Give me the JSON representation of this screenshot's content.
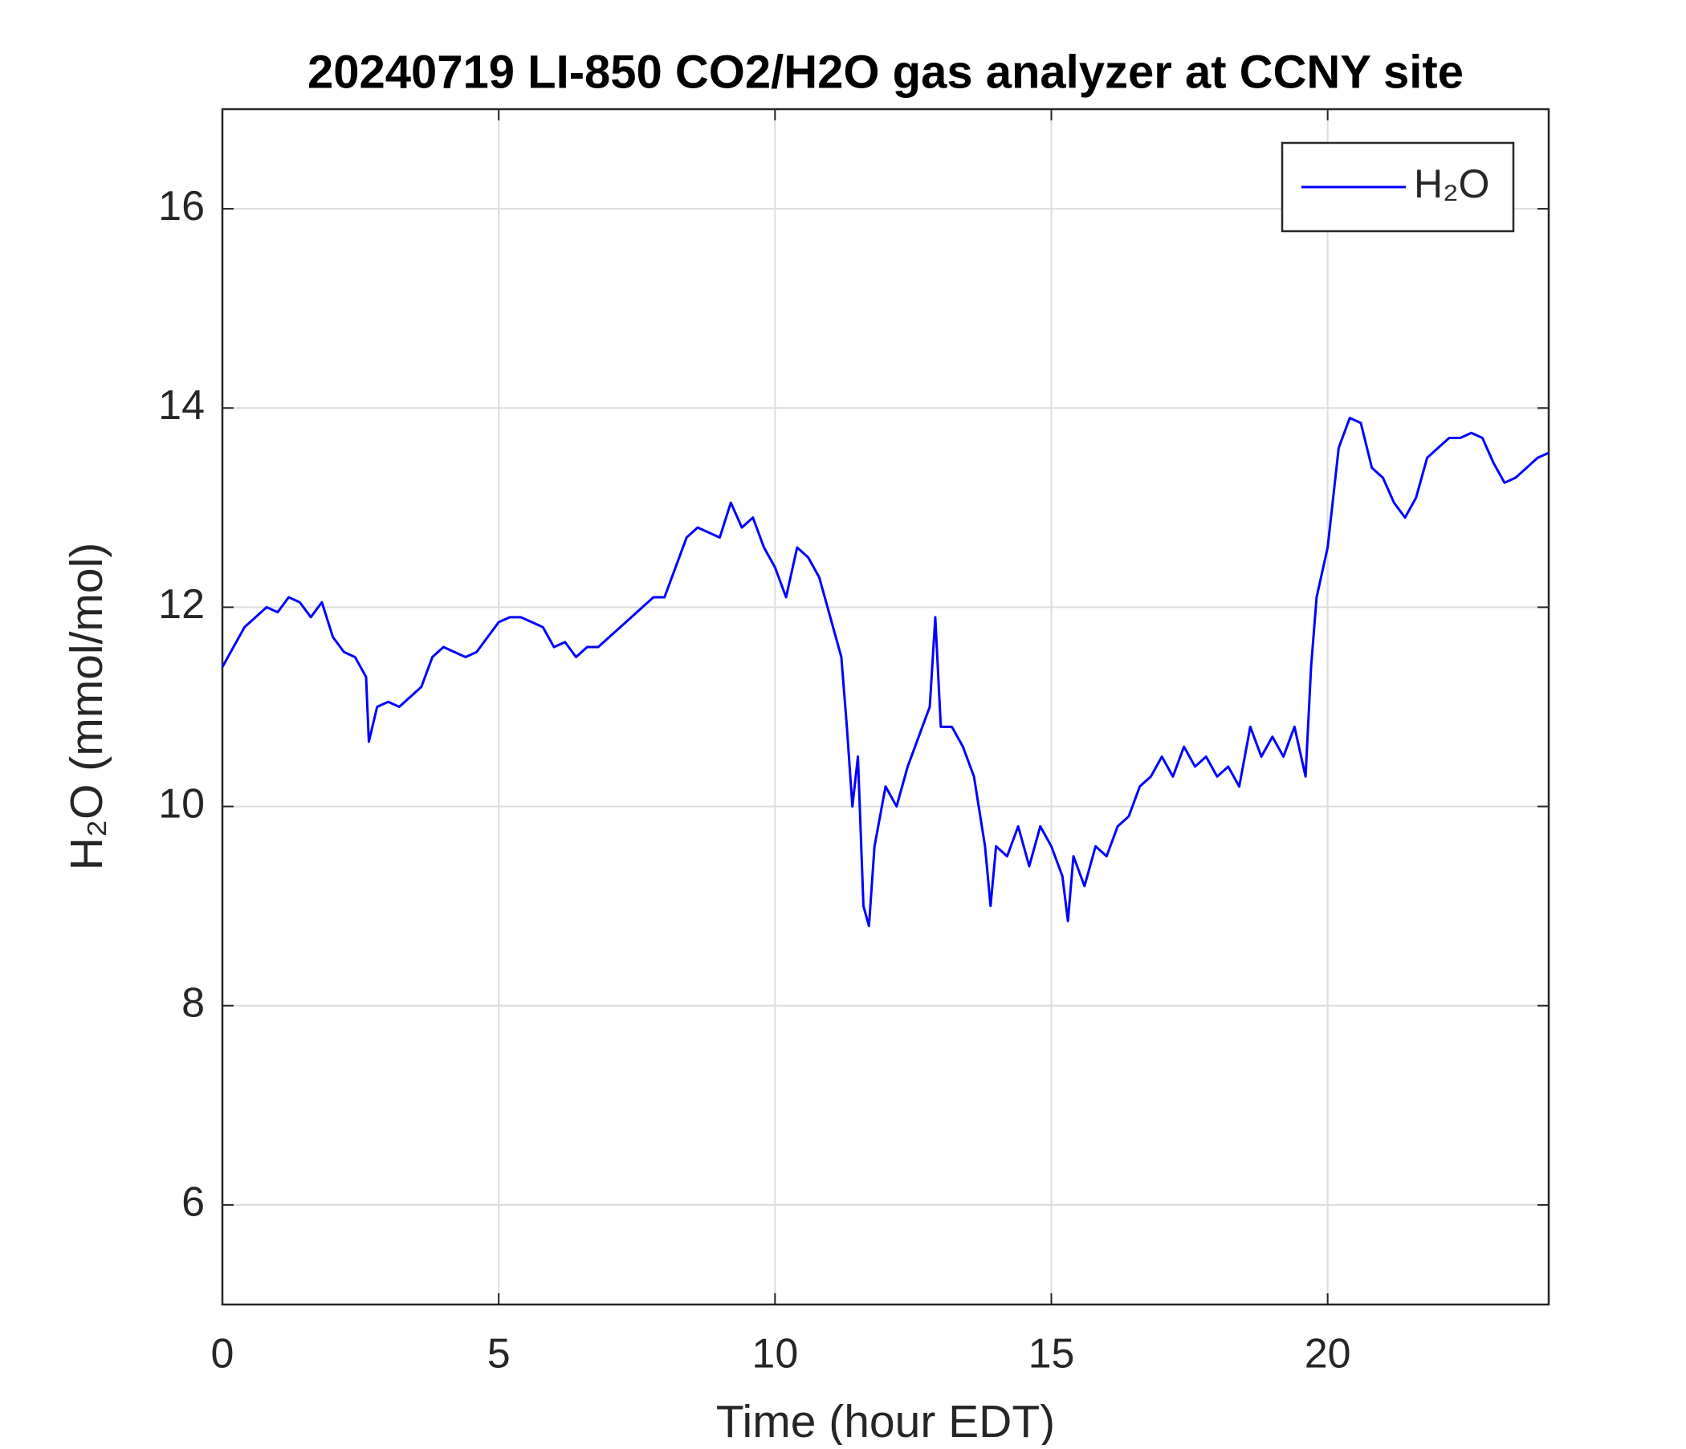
{
  "chart_data": {
    "type": "line",
    "title": "20240719 LI-850 CO2/H2O gas analyzer at CCNY site",
    "x_label": "Time (hour EDT)",
    "y_label": "H₂O (mmol/mol)",
    "xlim": [
      0,
      24
    ],
    "xticks": [
      0,
      5,
      10,
      15,
      20
    ],
    "ylim": [
      5,
      17
    ],
    "yticks": [
      6,
      8,
      10,
      12,
      14,
      16
    ],
    "grid": true,
    "legend": "upper right",
    "x": [
      0,
      0.2,
      0.4,
      0.6,
      0.8,
      1.0,
      1.2,
      1.4,
      1.6,
      1.8,
      2.0,
      2.2,
      2.4,
      2.6,
      2.65,
      2.8,
      3.0,
      3.2,
      3.4,
      3.6,
      3.8,
      4.0,
      4.2,
      4.4,
      4.6,
      4.8,
      5.0,
      5.2,
      5.4,
      5.6,
      5.8,
      6.0,
      6.2,
      6.4,
      6.6,
      6.8,
      7.0,
      7.2,
      7.4,
      7.6,
      7.8,
      8.0,
      8.2,
      8.4,
      8.6,
      8.8,
      9.0,
      9.2,
      9.4,
      9.6,
      9.8,
      10.0,
      10.2,
      10.4,
      10.6,
      10.8,
      11.0,
      11.2,
      11.3,
      11.4,
      11.5,
      11.6,
      11.7,
      11.8,
      12.0,
      12.2,
      12.4,
      12.6,
      12.8,
      12.9,
      13.0,
      13.2,
      13.4,
      13.6,
      13.8,
      13.9,
      14.0,
      14.2,
      14.4,
      14.6,
      14.8,
      15.0,
      15.2,
      15.3,
      15.4,
      15.6,
      15.8,
      16.0,
      16.2,
      16.4,
      16.6,
      16.8,
      17.0,
      17.2,
      17.4,
      17.6,
      17.8,
      18.0,
      18.2,
      18.4,
      18.6,
      18.8,
      19.0,
      19.2,
      19.4,
      19.6,
      19.7,
      19.8,
      20.0,
      20.2,
      20.4,
      20.6,
      20.8,
      21.0,
      21.2,
      21.4,
      21.6,
      21.8,
      22.0,
      22.2,
      22.4,
      22.6,
      22.8,
      23.0,
      23.2,
      23.4,
      23.6,
      23.8,
      24.0
    ],
    "series": [
      {
        "name": "H₂O",
        "color": "#0000ff",
        "values": [
          11.4,
          11.6,
          11.8,
          11.9,
          12.0,
          11.95,
          12.1,
          12.05,
          11.9,
          12.05,
          11.7,
          11.55,
          11.5,
          11.3,
          10.65,
          11.0,
          11.05,
          11.0,
          11.1,
          11.2,
          11.5,
          11.6,
          11.55,
          11.5,
          11.55,
          11.7,
          11.85,
          11.9,
          11.9,
          11.85,
          11.8,
          11.6,
          11.65,
          11.5,
          11.6,
          11.6,
          11.7,
          11.8,
          11.9,
          12.0,
          12.1,
          12.1,
          12.4,
          12.7,
          12.8,
          12.75,
          12.7,
          13.05,
          12.8,
          12.9,
          12.6,
          12.4,
          12.1,
          12.6,
          12.5,
          12.3,
          11.9,
          11.5,
          10.8,
          10.0,
          10.5,
          9.0,
          8.8,
          9.6,
          10.2,
          10.0,
          10.4,
          10.7,
          11.0,
          11.9,
          10.8,
          10.8,
          10.6,
          10.3,
          9.6,
          9.0,
          9.6,
          9.5,
          9.8,
          9.4,
          9.8,
          9.6,
          9.3,
          8.85,
          9.5,
          9.2,
          9.6,
          9.5,
          9.8,
          9.9,
          10.2,
          10.3,
          10.5,
          10.3,
          10.6,
          10.4,
          10.5,
          10.3,
          10.4,
          10.2,
          10.8,
          10.5,
          10.7,
          10.5,
          10.8,
          10.3,
          11.4,
          12.1,
          12.6,
          13.6,
          13.9,
          13.85,
          13.4,
          13.3,
          13.05,
          12.9,
          13.1,
          13.5,
          13.6,
          13.7,
          13.7,
          13.75,
          13.7,
          13.45,
          13.25,
          13.3,
          13.4,
          13.5,
          13.55
        ]
      }
    ]
  }
}
